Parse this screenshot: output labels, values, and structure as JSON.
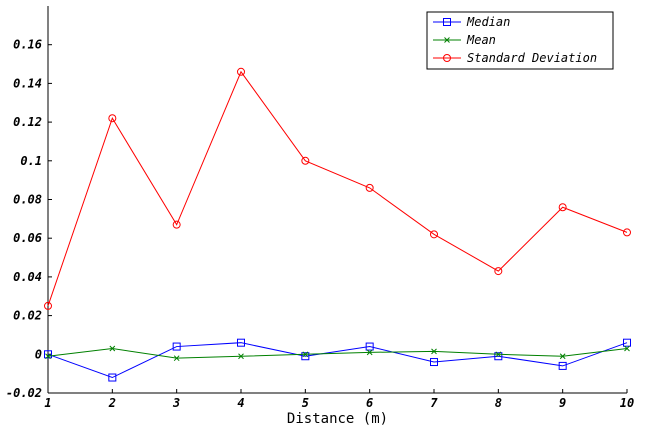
{
  "chart_data": {
    "type": "line",
    "title": "",
    "xlabel": "Distance (m)",
    "ylabel": "",
    "x": [
      1,
      2,
      3,
      4,
      5,
      6,
      7,
      8,
      9,
      10
    ],
    "xlim": [
      1,
      10
    ],
    "ylim": [
      -0.02,
      0.18
    ],
    "xticks": [
      1,
      2,
      3,
      4,
      5,
      6,
      7,
      8,
      9,
      10
    ],
    "yticks": [
      -0.02,
      0,
      0.02,
      0.04,
      0.06,
      0.08,
      0.1,
      0.12,
      0.14,
      0.16
    ],
    "ytick_labels": [
      "-0.02",
      "0",
      "0.02",
      "0.04",
      "0.06",
      "0.08",
      "0.1",
      "0.12",
      "0.14",
      "0.16"
    ],
    "grid": false,
    "legend_position": "top-right",
    "series": [
      {
        "name": "Median",
        "color": "#0000ff",
        "marker": "square",
        "values": [
          0.0,
          -0.012,
          0.004,
          0.006,
          -0.001,
          0.004,
          -0.004,
          -0.001,
          -0.006,
          0.006
        ]
      },
      {
        "name": "Mean",
        "color": "#008000",
        "marker": "x",
        "values": [
          -0.001,
          0.003,
          -0.002,
          -0.001,
          0.0,
          0.001,
          0.0015,
          0.0,
          -0.001,
          0.003
        ]
      },
      {
        "name": "Standard Deviation",
        "color": "#ff0000",
        "marker": "circle",
        "values": [
          0.025,
          0.122,
          0.067,
          0.146,
          0.1,
          0.086,
          0.062,
          0.043,
          0.076,
          0.063
        ]
      }
    ]
  }
}
